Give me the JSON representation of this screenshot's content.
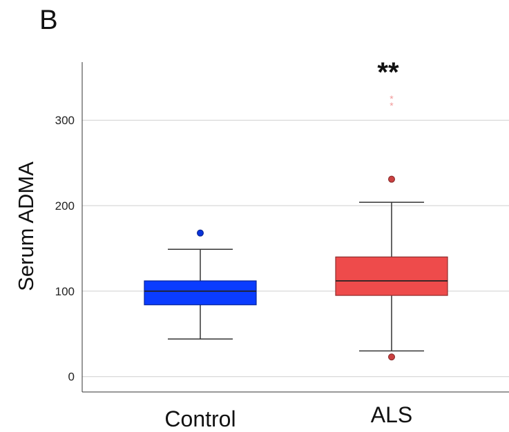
{
  "panel_label": "B",
  "significance": "**",
  "chart_data": {
    "type": "box",
    "title": "",
    "xlabel": "",
    "ylabel": "Serum ADMA",
    "ylim": [
      -18,
      368
    ],
    "yticks": [
      0,
      100,
      200,
      300
    ],
    "grid": "horizontal",
    "categories": [
      "Control",
      "ALS"
    ],
    "boxes": [
      {
        "category": "Control",
        "color": "#0a3cff",
        "whisker_low": 44,
        "q1": 84,
        "median": 100,
        "q3": 112,
        "whisker_high": 149,
        "outliers": [
          168
        ],
        "extremes": []
      },
      {
        "category": "ALS",
        "color": "#ee4b4b",
        "whisker_low": 30,
        "q1": 95,
        "median": 112,
        "q3": 140,
        "whisker_high": 204,
        "outliers": [
          231,
          23
        ],
        "extremes": [
          325,
          317
        ]
      }
    ]
  }
}
